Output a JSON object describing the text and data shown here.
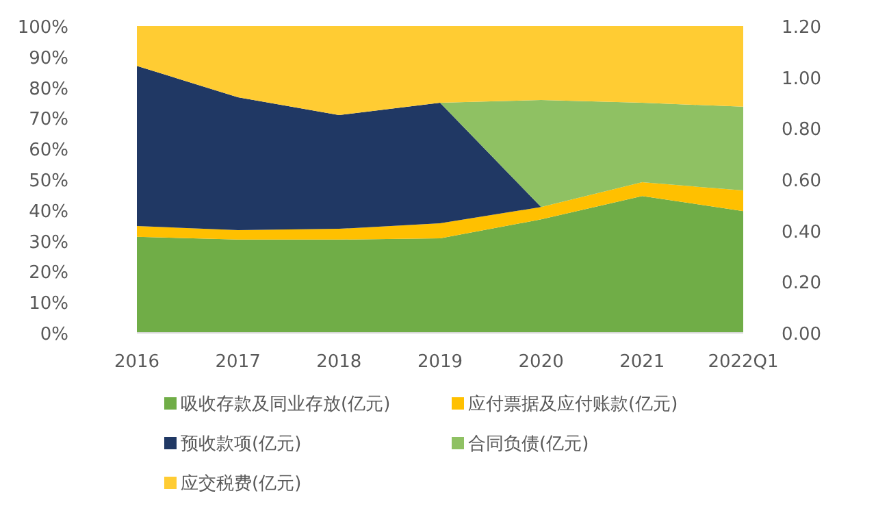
{
  "chart_data": {
    "type": "area",
    "stacked": true,
    "categories": [
      "2016",
      "2017",
      "2018",
      "2019",
      "2020",
      "2021",
      "2022Q1"
    ],
    "series": [
      {
        "name": "吸收存款及同业存放(亿元)",
        "color": "#70ad47",
        "values": [
          31.3,
          30.4,
          30.4,
          30.8,
          37,
          44.6,
          39.7
        ]
      },
      {
        "name": "应付票据及应付账款(亿元)",
        "color": "#ffc000",
        "values": [
          3.5,
          3.1,
          3.5,
          4.9,
          4,
          4.5,
          6.7
        ]
      },
      {
        "name": "预收款项(亿元)",
        "color": "#203864",
        "values": [
          52.2,
          43.3,
          37.1,
          39.3,
          0,
          0,
          0
        ]
      },
      {
        "name": "合同负债(亿元)",
        "color": "#8fc163",
        "values": [
          0,
          0,
          0,
          0,
          34.9,
          25.9,
          27.3
        ]
      },
      {
        "name": "应交税费(亿元)",
        "color": "#ffcc33",
        "values": [
          13,
          23.2,
          29,
          25,
          24.1,
          25,
          26.3
        ]
      }
    ],
    "ylim": [
      0,
      100
    ],
    "yticks": [
      {
        "value": 0,
        "label": "0%"
      },
      {
        "value": 10,
        "label": "10%"
      },
      {
        "value": 20,
        "label": "20%"
      },
      {
        "value": 30,
        "label": "30%"
      },
      {
        "value": 40,
        "label": "40%"
      },
      {
        "value": 50,
        "label": "50%"
      },
      {
        "value": 60,
        "label": "60%"
      },
      {
        "value": 70,
        "label": "70%"
      },
      {
        "value": 80,
        "label": "80%"
      },
      {
        "value": 90,
        "label": "90%"
      },
      {
        "value": 100,
        "label": "100%"
      }
    ],
    "y2lim": [
      0,
      1.2
    ],
    "y2ticks": [
      {
        "value": 0,
        "label": "0.00"
      },
      {
        "value": 0.2,
        "label": "0.20"
      },
      {
        "value": 0.4,
        "label": "0.40"
      },
      {
        "value": 0.6,
        "label": "0.60"
      },
      {
        "value": 0.8,
        "label": "0.80"
      },
      {
        "value": 1.0,
        "label": "1.00"
      },
      {
        "value": 1.2,
        "label": "1.20"
      }
    ],
    "grid": false,
    "legend": "bottom"
  }
}
